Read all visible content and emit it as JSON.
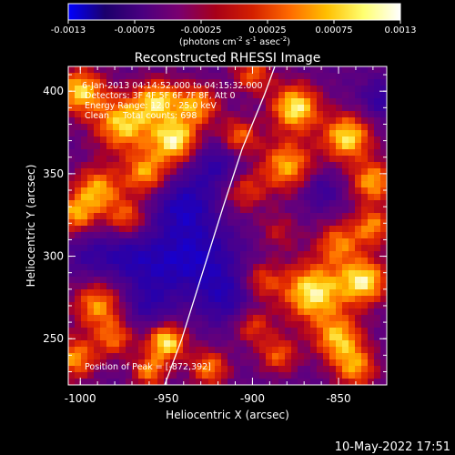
{
  "colorbar": {
    "ticks": [
      "-0.0013",
      "-0.00075",
      "-0.00025",
      "0.00025",
      "0.00075",
      "0.0013"
    ],
    "units_main": "(photons cm",
    "units_exp1": "-2",
    "units_mid": " s",
    "units_exp2": "-1",
    "units_end": " asec",
    "units_exp3": "-2",
    "units_close": ")",
    "colors": [
      "#0000ff",
      "#1b006b",
      "#4a0080",
      "#7a0070",
      "#a80018",
      "#d42000",
      "#ff6a00",
      "#ffbf00",
      "#ffff70",
      "#ffffff"
    ]
  },
  "chart_data": {
    "type": "heatmap",
    "title": "Reconstructed RHESSI Image",
    "annotations": {
      "time_range": "6-Jan-2013 04:14:52.000 to 04:15:32.000",
      "detectors": "Detectors: 3F 4F 5F 6F 7F 8F, Att 0",
      "energy_range": "Energy Range: 12.0 - 25.0 keV",
      "clean_line": "Clean     Total counts: 698",
      "peak": "Position of Peak = [-872,392]"
    },
    "xlabel": "Heliocentric X (arcsec)",
    "ylabel": "Heliocentric Y (arcsec)",
    "xlim": [
      -1007,
      -822
    ],
    "ylim": [
      222,
      415
    ],
    "x_ticks": [
      {
        "value": -1000,
        "label": "-1000"
      },
      {
        "value": -950,
        "label": "-950"
      },
      {
        "value": -900,
        "label": "-900"
      },
      {
        "value": -850,
        "label": "-850"
      }
    ],
    "y_ticks": [
      {
        "value": 250,
        "label": "250"
      },
      {
        "value": 300,
        "label": "300"
      },
      {
        "value": 350,
        "label": "350"
      },
      {
        "value": 400,
        "label": "400"
      }
    ],
    "limb_curve": [
      [
        -951,
        222
      ],
      [
        -941,
        250
      ],
      [
        -929,
        290
      ],
      [
        -917,
        330
      ],
      [
        -906,
        365
      ],
      [
        -893,
        398
      ],
      [
        -887,
        415
      ]
    ],
    "sources": [
      {
        "x": -1000,
        "y": 400,
        "amp": 0.9,
        "r": 10
      },
      {
        "x": -975,
        "y": 380,
        "amp": 0.9,
        "r": 12
      },
      {
        "x": -955,
        "y": 395,
        "amp": 0.8,
        "r": 9
      },
      {
        "x": -945,
        "y": 370,
        "amp": 1.0,
        "r": 10
      },
      {
        "x": -962,
        "y": 350,
        "amp": 0.75,
        "r": 9
      },
      {
        "x": -932,
        "y": 392,
        "amp": 0.75,
        "r": 9
      },
      {
        "x": -908,
        "y": 372,
        "amp": 0.7,
        "r": 8
      },
      {
        "x": -900,
        "y": 410,
        "amp": 0.6,
        "r": 8
      },
      {
        "x": -875,
        "y": 390,
        "amp": 1.0,
        "r": 10
      },
      {
        "x": -845,
        "y": 372,
        "amp": 0.95,
        "r": 10
      },
      {
        "x": -880,
        "y": 355,
        "amp": 0.8,
        "r": 11
      },
      {
        "x": -905,
        "y": 340,
        "amp": 0.55,
        "r": 9
      },
      {
        "x": -830,
        "y": 345,
        "amp": 0.8,
        "r": 9
      },
      {
        "x": -990,
        "y": 340,
        "amp": 0.8,
        "r": 10
      },
      {
        "x": -1003,
        "y": 325,
        "amp": 0.7,
        "r": 8
      },
      {
        "x": -973,
        "y": 323,
        "amp": 0.6,
        "r": 8
      },
      {
        "x": -850,
        "y": 308,
        "amp": 0.65,
        "r": 9
      },
      {
        "x": -830,
        "y": 318,
        "amp": 0.7,
        "r": 8
      },
      {
        "x": -990,
        "y": 270,
        "amp": 0.75,
        "r": 10
      },
      {
        "x": -1003,
        "y": 238,
        "amp": 0.75,
        "r": 9
      },
      {
        "x": -980,
        "y": 250,
        "amp": 0.6,
        "r": 8
      },
      {
        "x": -950,
        "y": 248,
        "amp": 1.0,
        "r": 8
      },
      {
        "x": -960,
        "y": 230,
        "amp": 0.7,
        "r": 7
      },
      {
        "x": -925,
        "y": 232,
        "amp": 0.7,
        "r": 8
      },
      {
        "x": -900,
        "y": 258,
        "amp": 0.55,
        "r": 8
      },
      {
        "x": -885,
        "y": 240,
        "amp": 0.6,
        "r": 8
      },
      {
        "x": -865,
        "y": 278,
        "amp": 1.0,
        "r": 13
      },
      {
        "x": -835,
        "y": 285,
        "amp": 0.95,
        "r": 10
      },
      {
        "x": -850,
        "y": 250,
        "amp": 0.8,
        "r": 10
      },
      {
        "x": -840,
        "y": 232,
        "amp": 0.7,
        "r": 9
      },
      {
        "x": -895,
        "y": 285,
        "amp": 0.55,
        "r": 8
      },
      {
        "x": -885,
        "y": 315,
        "amp": 0.35,
        "r": 8
      },
      {
        "x": -930,
        "y": 300,
        "amp": -0.5,
        "r": 15
      },
      {
        "x": -955,
        "y": 295,
        "amp": -0.4,
        "r": 14
      },
      {
        "x": -975,
        "y": 300,
        "amp": -0.35,
        "r": 10
      },
      {
        "x": -920,
        "y": 355,
        "amp": -0.45,
        "r": 12
      },
      {
        "x": -940,
        "y": 330,
        "amp": -0.55,
        "r": 12
      },
      {
        "x": -915,
        "y": 275,
        "amp": -0.45,
        "r": 12
      },
      {
        "x": -960,
        "y": 270,
        "amp": -0.35,
        "r": 10
      },
      {
        "x": -860,
        "y": 340,
        "amp": -0.35,
        "r": 8
      },
      {
        "x": -825,
        "y": 395,
        "amp": -0.4,
        "r": 8
      },
      {
        "x": -995,
        "y": 300,
        "amp": -0.3,
        "r": 9
      }
    ]
  },
  "footer": {
    "timestamp": "10-May-2022 17:51"
  }
}
